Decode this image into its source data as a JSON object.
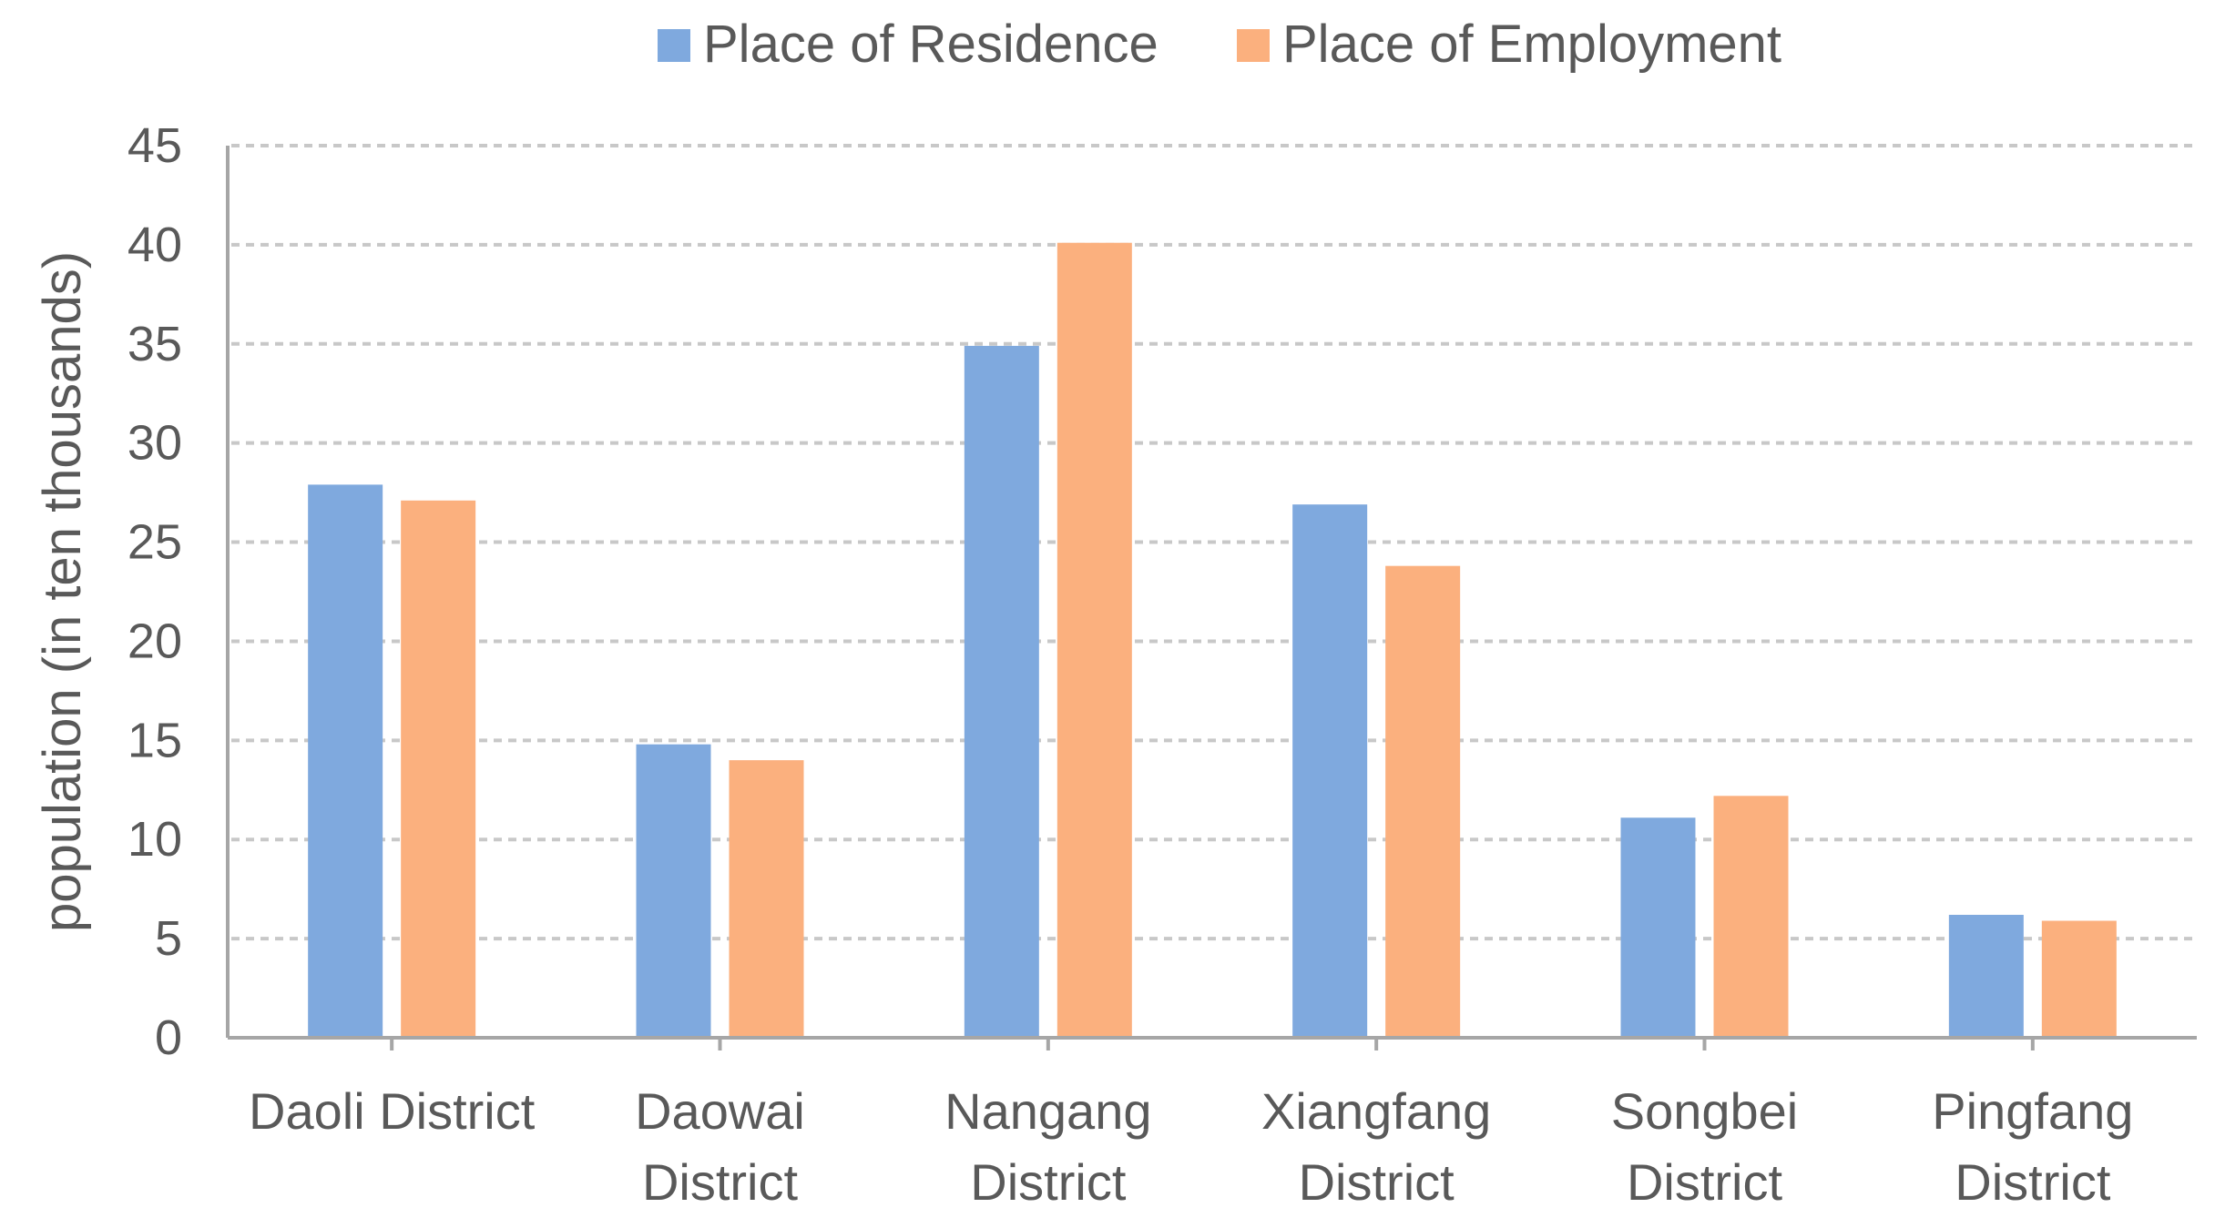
{
  "chart_data": {
    "type": "bar",
    "title": "",
    "xlabel": "",
    "ylabel": "population (in ten thousands)",
    "ylim": [
      0,
      45
    ],
    "yticks": [
      0,
      5,
      10,
      15,
      20,
      25,
      30,
      35,
      40,
      45
    ],
    "grid": true,
    "legend_position": "top",
    "categories": [
      [
        "Daoli District"
      ],
      [
        "Daowai",
        "District"
      ],
      [
        "Nangang",
        "District"
      ],
      [
        "Xiangfang",
        "District"
      ],
      [
        "Songbei",
        "District"
      ],
      [
        "Pingfang",
        "District"
      ]
    ],
    "series": [
      {
        "name": "Place of Residence",
        "color": "#7FA9DE",
        "values": [
          27.9,
          14.8,
          34.9,
          26.9,
          11.1,
          6.2
        ]
      },
      {
        "name": "Place of Employment",
        "color": "#FBB07E",
        "values": [
          27.1,
          14.0,
          40.1,
          23.8,
          12.2,
          5.9
        ]
      }
    ],
    "colors": {
      "axis": "#A6A6A6",
      "grid": "#C8C8C8",
      "text": "#595959"
    }
  }
}
